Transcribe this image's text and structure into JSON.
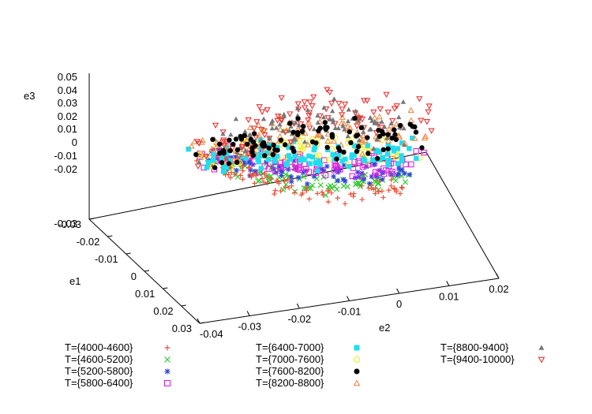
{
  "chart_data": {
    "type": "scatter",
    "projection": "3d",
    "axes": {
      "x": {
        "label": "e1",
        "ticks": [
          "-0.03",
          "-0.02",
          "-0.01",
          "0",
          "0.01",
          "0.02",
          "0.03"
        ],
        "range": [
          -0.03,
          0.03
        ]
      },
      "y": {
        "label": "e2",
        "ticks": [
          "-0.04",
          "-0.03",
          "-0.02",
          "-0.01",
          "0",
          "0.01",
          "0.02"
        ],
        "range": [
          -0.04,
          0.02
        ]
      },
      "z": {
        "label": "e3",
        "ticks": [
          "0.05",
          "0.04",
          "0.03",
          "0.02",
          "0.01",
          "0",
          "-0.01",
          "-0.02",
          "-0.03"
        ],
        "range": [
          -0.03,
          0.05
        ]
      }
    },
    "grid": false,
    "legend_position": "bottom",
    "series": [
      {
        "name": "T={4000-4600}",
        "marker": "plus",
        "color": "#e8533a"
      },
      {
        "name": "T={4600-5200}",
        "marker": "cross",
        "color": "#33cc33"
      },
      {
        "name": "T={5200-5800}",
        "marker": "star",
        "color": "#3344dd"
      },
      {
        "name": "T={5800-6400}",
        "marker": "square-open",
        "color": "#dd22dd"
      },
      {
        "name": "T={6400-7000}",
        "marker": "square-filled",
        "color": "#22ddee"
      },
      {
        "name": "T={7000-7600}",
        "marker": "circle-open",
        "color": "#eeee22"
      },
      {
        "name": "T={7600-8200}",
        "marker": "circle-filled",
        "color": "#000000"
      },
      {
        "name": "T={8200-8800}",
        "marker": "triangle-open",
        "color": "#f08a4b"
      },
      {
        "name": "T={8800-9400}",
        "marker": "triangle-filled",
        "color": "#777777"
      },
      {
        "name": "T={9400-10000}",
        "marker": "triangle-down-open",
        "color": "#ee3333"
      }
    ]
  }
}
